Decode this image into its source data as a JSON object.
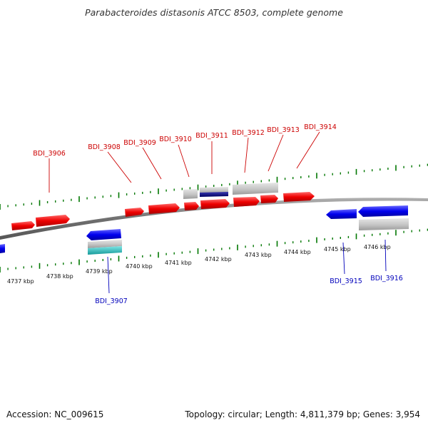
{
  "title": "Parabacteroides distasonis ATCC 8503, complete genome",
  "accession": "Accession: NC_009615",
  "topology": "Topology: circular; Length: 4,811,379 bp; Genes: 3,954",
  "colors": {
    "forward_gene": "#ee0000",
    "reverse_gene": "#0000ee",
    "other_feature": "#c8c8c8",
    "navy_feature": "#000080",
    "cyan_feature": "#33cccc",
    "tick": "#007700",
    "top_label": "#cc0000",
    "bottom_label": "#0000bb",
    "backbone": "#808080"
  },
  "kbp_labels": [
    "4737 kbp",
    "4738 kbp",
    "4739 kbp",
    "4740 kbp",
    "4741 kbp",
    "4742 kbp",
    "4743 kbp",
    "4744 kbp",
    "4745 kbp",
    "4746 kbp"
  ],
  "top_gene_labels": [
    "BDI_3906",
    "BDI_3908",
    "BDI_3909",
    "BDI_3910",
    "BDI_3911",
    "BDI_3912",
    "BDI_3913",
    "BDI_3914"
  ],
  "bottom_gene_labels": [
    "BDI_3907",
    "BDI_3915",
    "BDI_3916"
  ]
}
